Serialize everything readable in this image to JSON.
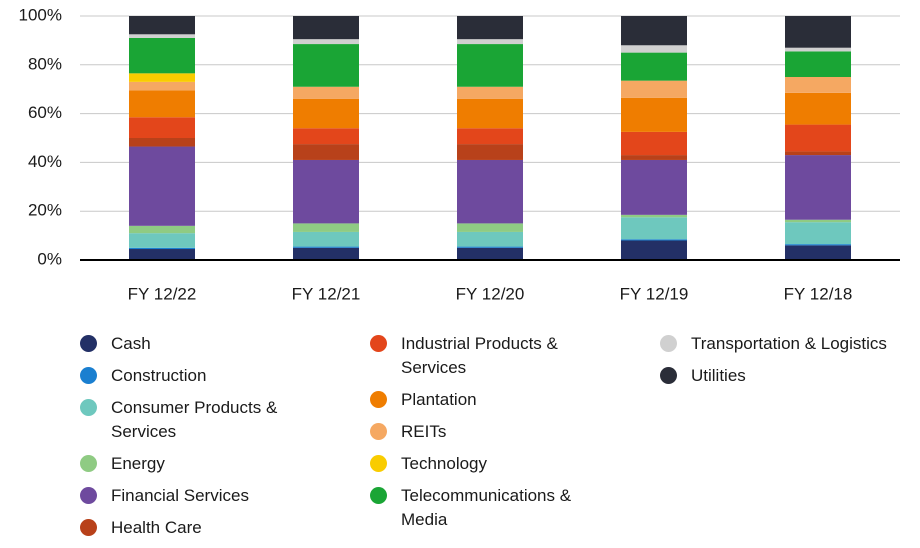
{
  "chart_data": {
    "type": "stacked_bar",
    "categories": [
      "FY 12/22",
      "FY 12/21",
      "FY 12/20",
      "FY 12/19",
      "FY 12/18"
    ],
    "ylim": [
      0,
      100
    ],
    "yticks": [
      {
        "value": 0,
        "label": "0%"
      },
      {
        "value": 20,
        "label": "20%"
      },
      {
        "value": 40,
        "label": "40%"
      },
      {
        "value": 60,
        "label": "60%"
      },
      {
        "value": 80,
        "label": "80%"
      },
      {
        "value": 100,
        "label": "100%"
      }
    ],
    "grid": true,
    "series": [
      {
        "name": "Cash",
        "color": "#233066",
        "values": [
          4.5,
          5,
          5,
          8,
          6
        ]
      },
      {
        "name": "Construction",
        "color": "#1a7fd0",
        "values": [
          0.5,
          0.5,
          0.5,
          0.5,
          0.5
        ]
      },
      {
        "name": "Consumer Products & Services",
        "color": "#6ec8be",
        "values": [
          6,
          6,
          6,
          9,
          9
        ]
      },
      {
        "name": "Energy",
        "color": "#8fcb83",
        "values": [
          3,
          3.5,
          3.5,
          1,
          1
        ]
      },
      {
        "name": "Financial Services",
        "color": "#6e4a9e",
        "values": [
          32.5,
          26,
          26,
          22.5,
          26.5
        ]
      },
      {
        "name": "Health Care",
        "color": "#b8411a",
        "values": [
          3.5,
          6.5,
          6.5,
          2,
          1.5
        ]
      },
      {
        "name": "Industrial Products & Services",
        "color": "#e3461b",
        "values": [
          8.5,
          6.5,
          6.5,
          9.5,
          11
        ]
      },
      {
        "name": "Plantation",
        "color": "#ef7d00",
        "values": [
          11,
          12,
          12,
          14,
          13
        ]
      },
      {
        "name": "REITs",
        "color": "#f5a862",
        "values": [
          3.5,
          5,
          5,
          7,
          6.5
        ]
      },
      {
        "name": "Technology",
        "color": "#f9cc00",
        "values": [
          3.5,
          0,
          0,
          0,
          0
        ]
      },
      {
        "name": "Telecommunications & Media",
        "color": "#1aa535",
        "values": [
          14.5,
          17.5,
          17.5,
          11.5,
          10.5
        ]
      },
      {
        "name": "Transportation & Logistics",
        "color": "#d0d0d0",
        "values": [
          1.5,
          2,
          2,
          3,
          1.5
        ]
      },
      {
        "name": "Utilities",
        "color": "#2a2d38",
        "values": [
          7.5,
          9.5,
          9.5,
          12,
          13
        ]
      }
    ]
  }
}
